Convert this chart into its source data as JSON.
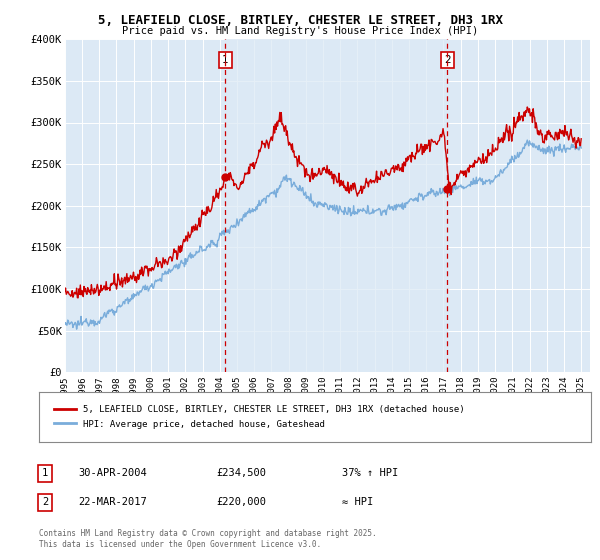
{
  "title1": "5, LEAFIELD CLOSE, BIRTLEY, CHESTER LE STREET, DH3 1RX",
  "title2": "Price paid vs. HM Land Registry's House Price Index (HPI)",
  "ylim": [
    0,
    400000
  ],
  "yticks": [
    0,
    50000,
    100000,
    150000,
    200000,
    250000,
    300000,
    350000,
    400000
  ],
  "ytick_labels": [
    "£0",
    "£50K",
    "£100K",
    "£150K",
    "£200K",
    "£250K",
    "£300K",
    "£350K",
    "£400K"
  ],
  "hpi_color": "#7aaddb",
  "hpi_fill_color": "#dce9f5",
  "price_color": "#cc0000",
  "dashed_color": "#cc0000",
  "transaction1_year": 2004.33,
  "transaction1_price": 234500,
  "transaction1_label": "1",
  "transaction2_year": 2017.22,
  "transaction2_price": 220000,
  "transaction2_label": "2",
  "legend_line1": "5, LEAFIELD CLOSE, BIRTLEY, CHESTER LE STREET, DH3 1RX (detached house)",
  "legend_line2": "HPI: Average price, detached house, Gateshead",
  "table_row1_num": "1",
  "table_row1_date": "30-APR-2004",
  "table_row1_price": "£234,500",
  "table_row1_hpi": "37% ↑ HPI",
  "table_row2_num": "2",
  "table_row2_date": "22-MAR-2017",
  "table_row2_price": "£220,000",
  "table_row2_hpi": "≈ HPI",
  "footnote": "Contains HM Land Registry data © Crown copyright and database right 2025.\nThis data is licensed under the Open Government Licence v3.0.",
  "background_color": "#dce9f5",
  "fig_bg": "#ffffff"
}
